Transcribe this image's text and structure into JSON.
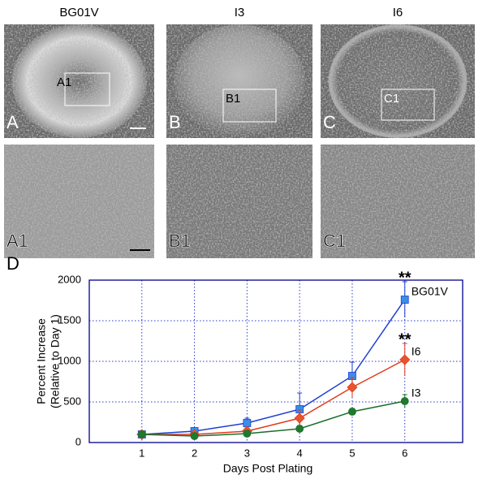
{
  "figure": {
    "columns": [
      "BG01V",
      "I3",
      "I6"
    ],
    "panels": [
      {
        "label": "A",
        "inset": "A1",
        "detail": "A1"
      },
      {
        "label": "B",
        "inset": "B1",
        "detail": "B1"
      },
      {
        "label": "C",
        "inset": "C1",
        "detail": "C1"
      }
    ],
    "chart_label": "D"
  },
  "chart_data": {
    "type": "line",
    "xlabel": "Days Post Plating",
    "ylabel": [
      "Percent Increase",
      "(Relative to Day 1)"
    ],
    "x": [
      1,
      2,
      3,
      4,
      5,
      6
    ],
    "series": [
      {
        "name": "BG01V",
        "color": "#1f3fd0",
        "marker": "square",
        "marker_color": "#3a8ee6",
        "values": [
          100,
          140,
          240,
          410,
          820,
          1760
        ],
        "errors": [
          20,
          30,
          60,
          200,
          170,
          220
        ]
      },
      {
        "name": "I6",
        "color": "#e03c1e",
        "marker": "diamond",
        "marker_color": "#e8542c",
        "values": [
          100,
          100,
          140,
          300,
          680,
          1020
        ],
        "errors": [
          20,
          20,
          40,
          100,
          120,
          200
        ]
      },
      {
        "name": "I3",
        "color": "#1a6e2a",
        "marker": "circle",
        "marker_color": "#1e7a2e",
        "values": [
          100,
          80,
          110,
          170,
          380,
          510
        ],
        "errors": [
          20,
          20,
          30,
          40,
          40,
          80
        ]
      }
    ],
    "annotations": [
      {
        "text": "**",
        "series": 0
      },
      {
        "text": "**",
        "series": 1
      }
    ],
    "xlim": [
      0,
      7.1
    ],
    "ylim": [
      0,
      2000
    ],
    "xticks": [
      1,
      2,
      3,
      4,
      5,
      6
    ],
    "yticks": [
      0,
      500,
      1000,
      1500,
      2000
    ],
    "grid": true
  }
}
